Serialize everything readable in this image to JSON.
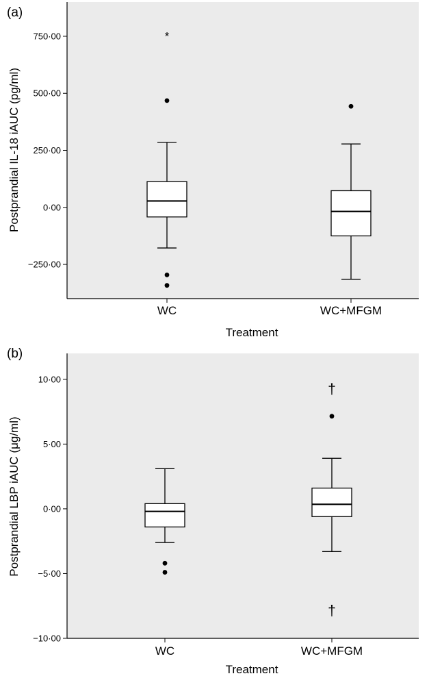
{
  "chart_data": [
    {
      "panel_label": "(a)",
      "type": "box",
      "xlabel": "Treatment",
      "ylabel": "Postprandial IL-18 iAUC (pg/ml)",
      "ylim": [
        -400,
        900
      ],
      "ticks": [
        {
          "value": 750,
          "label": "750·00"
        },
        {
          "value": 500,
          "label": "500·00"
        },
        {
          "value": 250,
          "label": "250·00"
        },
        {
          "value": 0,
          "label": "0·00"
        },
        {
          "value": -250,
          "label": "−250·00"
        }
      ],
      "categories": [
        "WC",
        "WC+MFGM"
      ],
      "boxes": [
        {
          "category": "WC",
          "whisker_low": -178,
          "q1": -42,
          "median": 28,
          "q3": 113,
          "whisker_high": 285,
          "outliers": [
            {
              "value": 760,
              "marker": "*"
            },
            {
              "value": 468,
              "marker": "•"
            },
            {
              "value": -296,
              "marker": "•"
            },
            {
              "value": -342,
              "marker": "•"
            }
          ]
        },
        {
          "category": "WC+MFGM",
          "whisker_low": -315,
          "q1": -125,
          "median": -18,
          "q3": 73,
          "whisker_high": 278,
          "outliers": [
            {
              "value": 443,
              "marker": "•"
            }
          ]
        }
      ],
      "grid": false,
      "colors": {
        "plot_background": "#ebebeb",
        "box_fill": "#ffffff",
        "line": "#000000"
      }
    },
    {
      "panel_label": "(b)",
      "type": "box",
      "xlabel": "Treatment",
      "ylabel": "Postprandial LBP iAUC (μg/ml)",
      "ylim": [
        -10,
        12
      ],
      "ticks": [
        {
          "value": 10,
          "label": "10·00"
        },
        {
          "value": 5,
          "label": "5·00"
        },
        {
          "value": 0,
          "label": "0·00"
        },
        {
          "value": -5,
          "label": "−5·00"
        },
        {
          "value": -10,
          "label": "−10·00"
        }
      ],
      "categories": [
        "WC",
        "WC+MFGM"
      ],
      "boxes": [
        {
          "category": "WC",
          "whisker_low": -2.6,
          "q1": -1.4,
          "median": -0.2,
          "q3": 0.4,
          "whisker_high": 3.1,
          "outliers": [
            {
              "value": -4.2,
              "marker": "•"
            },
            {
              "value": -4.9,
              "marker": "•"
            }
          ]
        },
        {
          "category": "WC+MFGM",
          "whisker_low": -3.3,
          "q1": -0.6,
          "median": 0.35,
          "q3": 1.6,
          "whisker_high": 3.9,
          "outliers": [
            {
              "value": 9.3,
              "marker": "†"
            },
            {
              "value": 7.15,
              "marker": "•"
            },
            {
              "value": -7.8,
              "marker": "†"
            }
          ]
        }
      ],
      "grid": false,
      "colors": {
        "plot_background": "#ebebeb",
        "box_fill": "#ffffff",
        "line": "#000000"
      }
    }
  ]
}
